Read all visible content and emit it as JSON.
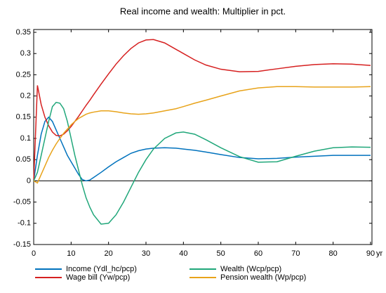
{
  "chart_data": {
    "type": "line",
    "title": "Real income and wealth: Multiplier in pct.",
    "x_label": "yr",
    "x": [
      0,
      1,
      2,
      3,
      4,
      5,
      6,
      7,
      8,
      9,
      10,
      11,
      12,
      13,
      14,
      15,
      16,
      18,
      20,
      22,
      24,
      26,
      28,
      30,
      32,
      35,
      38,
      40,
      43,
      46,
      50,
      55,
      60,
      65,
      70,
      75,
      80,
      85,
      90
    ],
    "series": [
      {
        "name": "Income (Ydl_hc/pcp)",
        "color": "#0072bd",
        "values": [
          0,
          0.06,
          0.11,
          0.14,
          0.15,
          0.14,
          0.12,
          0.1,
          0.08,
          0.06,
          0.045,
          0.03,
          0.015,
          0.003,
          0,
          0.002,
          0.008,
          0.02,
          0.033,
          0.045,
          0.055,
          0.065,
          0.071,
          0.075,
          0.077,
          0.078,
          0.077,
          0.075,
          0.072,
          0.068,
          0.062,
          0.055,
          0.052,
          0.053,
          0.056,
          0.058,
          0.06,
          0.06,
          0.06
        ]
      },
      {
        "name": "Wage bill (Yw/pcp)",
        "color": "#d62020",
        "values": [
          0,
          0.225,
          0.18,
          0.15,
          0.13,
          0.115,
          0.107,
          0.106,
          0.11,
          0.118,
          0.128,
          0.14,
          0.152,
          0.165,
          0.178,
          0.19,
          0.203,
          0.228,
          0.252,
          0.275,
          0.295,
          0.312,
          0.325,
          0.332,
          0.333,
          0.325,
          0.31,
          0.3,
          0.285,
          0.273,
          0.263,
          0.257,
          0.258,
          0.264,
          0.27,
          0.274,
          0.276,
          0.275,
          0.272
        ]
      },
      {
        "name": "Wealth (Wcp/pcp)",
        "color": "#20a77a",
        "values": [
          0,
          0.02,
          0.06,
          0.1,
          0.14,
          0.175,
          0.185,
          0.183,
          0.17,
          0.14,
          0.1,
          0.06,
          0.025,
          -0.01,
          -0.04,
          -0.062,
          -0.08,
          -0.102,
          -0.1,
          -0.08,
          -0.05,
          -0.015,
          0.02,
          0.05,
          0.075,
          0.1,
          0.113,
          0.115,
          0.11,
          0.097,
          0.078,
          0.057,
          0.044,
          0.045,
          0.058,
          0.07,
          0.078,
          0.08,
          0.079
        ]
      },
      {
        "name": "Pension wealth (Wp/pcp)",
        "color": "#e8a31a",
        "values": [
          0,
          -0.005,
          0.015,
          0.035,
          0.055,
          0.072,
          0.087,
          0.1,
          0.112,
          0.122,
          0.132,
          0.14,
          0.147,
          0.152,
          0.157,
          0.16,
          0.162,
          0.165,
          0.165,
          0.163,
          0.16,
          0.158,
          0.157,
          0.158,
          0.16,
          0.165,
          0.17,
          0.175,
          0.183,
          0.19,
          0.2,
          0.212,
          0.219,
          0.222,
          0.222,
          0.221,
          0.221,
          0.221,
          0.222
        ]
      }
    ],
    "xlim": [
      0,
      90
    ],
    "xticks": [
      0,
      10,
      20,
      30,
      40,
      50,
      60,
      70,
      80,
      90
    ],
    "ylim": [
      -0.15,
      0.35
    ],
    "yticks": [
      -0.15,
      -0.1,
      -0.05,
      0,
      0.05,
      0.1,
      0.15,
      0.2,
      0.25,
      0.3,
      0.35
    ],
    "legend": "bottom"
  }
}
